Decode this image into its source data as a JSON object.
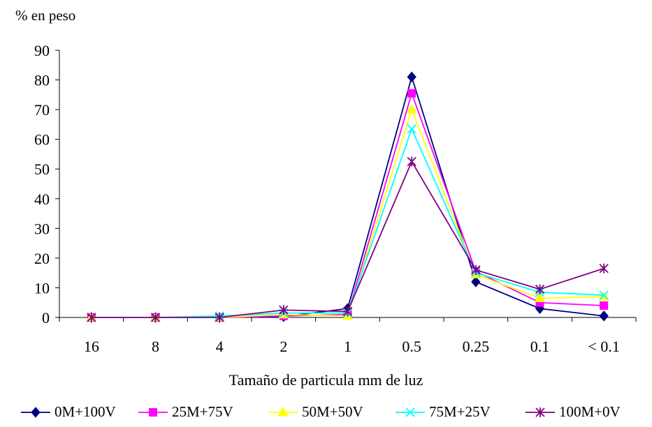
{
  "chart_data": {
    "type": "line",
    "ylabel": "% en peso",
    "xlabel": "Tamaño de particula mm de luz",
    "categories": [
      "16",
      "8",
      "4",
      "2",
      "1",
      "0.5",
      "0.25",
      "0.1",
      "< 0.1"
    ],
    "ylim": [
      0,
      90
    ],
    "yticks": [
      0,
      10,
      20,
      30,
      40,
      50,
      60,
      70,
      80,
      90
    ],
    "grid": false,
    "legend_position": "bottom",
    "series": [
      {
        "name": "0M+100V",
        "color": "#000080",
        "marker": "diamond",
        "values": [
          0,
          0,
          0,
          0.3,
          3,
          81,
          12,
          3,
          0.5
        ]
      },
      {
        "name": "25M+75V",
        "color": "#ff00ff",
        "marker": "square",
        "values": [
          0,
          0,
          0,
          0.5,
          1,
          75.5,
          15.5,
          5,
          4
        ]
      },
      {
        "name": "50M+50V",
        "color": "#ffff00",
        "marker": "triangle",
        "values": [
          0,
          0,
          0,
          1,
          0.5,
          70,
          14.5,
          6.5,
          7
        ]
      },
      {
        "name": "75M+25V",
        "color": "#00ffff",
        "marker": "x",
        "values": [
          0,
          0,
          0.5,
          1.5,
          1.5,
          63.5,
          15,
          8.5,
          7.5
        ]
      },
      {
        "name": "100M+0V",
        "color": "#800080",
        "marker": "asterisk",
        "values": [
          0,
          0,
          0,
          2.5,
          2,
          52.5,
          16,
          9.5,
          16.5
        ]
      }
    ]
  }
}
